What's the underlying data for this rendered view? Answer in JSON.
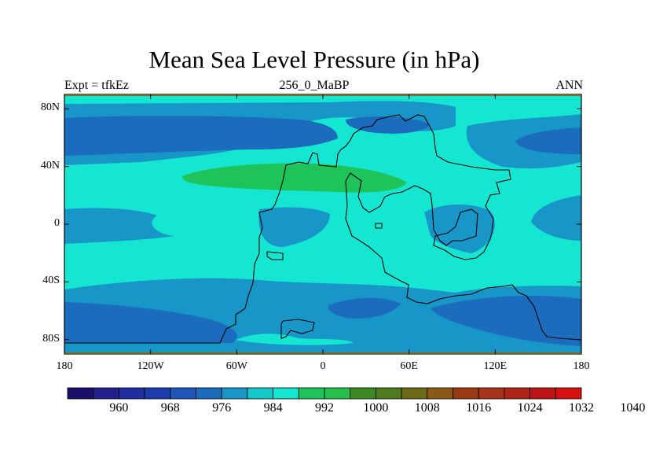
{
  "title": "Mean Sea Level Pressure (in hPa)",
  "subtitle_left": "Expt = tfkEz",
  "subtitle_center": "256_0_MaBP",
  "subtitle_right": "ANN",
  "map": {
    "projection": "cylindrical-equidistant",
    "lon_range": [
      -180,
      180
    ],
    "lat_range": [
      -90,
      90
    ],
    "x_ticks": [
      {
        "lon": -180,
        "label": "180"
      },
      {
        "lon": -120,
        "label": "120W"
      },
      {
        "lon": -60,
        "label": "60W"
      },
      {
        "lon": 0,
        "label": "0"
      },
      {
        "lon": 60,
        "label": "60E"
      },
      {
        "lon": 120,
        "label": "120E"
      },
      {
        "lon": 180,
        "label": "180"
      }
    ],
    "y_ticks": [
      {
        "lat": 80,
        "label": "80N"
      },
      {
        "lat": 40,
        "label": "40N"
      },
      {
        "lat": 0,
        "label": "0"
      },
      {
        "lat": -40,
        "label": "40S"
      },
      {
        "lat": -80,
        "label": "80S"
      }
    ]
  },
  "colorbar": {
    "colors": [
      "#1a0f6b",
      "#22208c",
      "#1f2ea0",
      "#1c3cae",
      "#1d56b8",
      "#1c6cbe",
      "#1896c8",
      "#14c8cc",
      "#15e6d2",
      "#1ec45a",
      "#24c04a",
      "#3d8a25",
      "#4f7a1e",
      "#6b6a17",
      "#8a5a14",
      "#9a3a12",
      "#a8321a",
      "#ae2416",
      "#bc1414",
      "#d81010"
    ],
    "labels": [
      {
        "value": 960,
        "label": "960"
      },
      {
        "value": 968,
        "label": "968"
      },
      {
        "value": 976,
        "label": "976"
      },
      {
        "value": 984,
        "label": "984"
      },
      {
        "value": 992,
        "label": "992"
      },
      {
        "value": 1000,
        "label": "1000"
      },
      {
        "value": 1008,
        "label": "1008"
      },
      {
        "value": 1016,
        "label": "1016"
      },
      {
        "value": 1024,
        "label": "1024"
      },
      {
        "value": 1032,
        "label": "1032"
      },
      {
        "value": 1040,
        "label": "1040"
      }
    ]
  }
}
